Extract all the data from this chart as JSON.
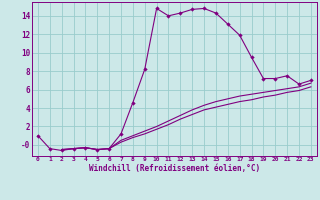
{
  "xlabel": "Windchill (Refroidissement éolien,°C)",
  "bg_color": "#cce8e8",
  "line_color": "#800080",
  "grid_color": "#99cccc",
  "xlim": [
    -0.5,
    23.5
  ],
  "ylim": [
    -1.2,
    15.5
  ],
  "xticks": [
    0,
    1,
    2,
    3,
    4,
    5,
    6,
    7,
    8,
    9,
    10,
    11,
    12,
    13,
    14,
    15,
    16,
    17,
    18,
    19,
    20,
    21,
    22,
    23
  ],
  "yticks": [
    0,
    2,
    4,
    6,
    8,
    10,
    12,
    14
  ],
  "ytick_labels": [
    "-0",
    "2",
    "4",
    "6",
    "8",
    "10",
    "12",
    "14"
  ],
  "line1_x": [
    0,
    1,
    2,
    3,
    4,
    5,
    6,
    7,
    8,
    9,
    10,
    11,
    12,
    13,
    14,
    15,
    16,
    17,
    18,
    19,
    20,
    21,
    22,
    23
  ],
  "line1_y": [
    1.0,
    -0.4,
    -0.6,
    -0.4,
    -0.3,
    -0.5,
    -0.4,
    1.2,
    4.6,
    8.2,
    14.8,
    14.0,
    14.3,
    14.7,
    14.8,
    14.3,
    13.1,
    11.9,
    9.5,
    7.2,
    7.2,
    7.5,
    6.6,
    7.0
  ],
  "line2_x": [
    2,
    3,
    4,
    5,
    6,
    7,
    8,
    9,
    10,
    11,
    12,
    13,
    14,
    15,
    16,
    17,
    18,
    19,
    20,
    21,
    22,
    23
  ],
  "line2_y": [
    -0.5,
    -0.4,
    -0.3,
    -0.5,
    -0.4,
    0.5,
    1.0,
    1.5,
    2.0,
    2.6,
    3.2,
    3.8,
    4.3,
    4.7,
    5.0,
    5.3,
    5.5,
    5.7,
    5.9,
    6.1,
    6.3,
    6.7
  ],
  "line3_x": [
    2,
    3,
    4,
    5,
    6,
    7,
    8,
    9,
    10,
    11,
    12,
    13,
    14,
    15,
    16,
    17,
    18,
    19,
    20,
    21,
    22,
    23
  ],
  "line3_y": [
    -0.5,
    -0.4,
    -0.3,
    -0.5,
    -0.4,
    0.3,
    0.8,
    1.2,
    1.7,
    2.2,
    2.8,
    3.3,
    3.8,
    4.1,
    4.4,
    4.7,
    4.9,
    5.2,
    5.4,
    5.7,
    5.9,
    6.3
  ]
}
